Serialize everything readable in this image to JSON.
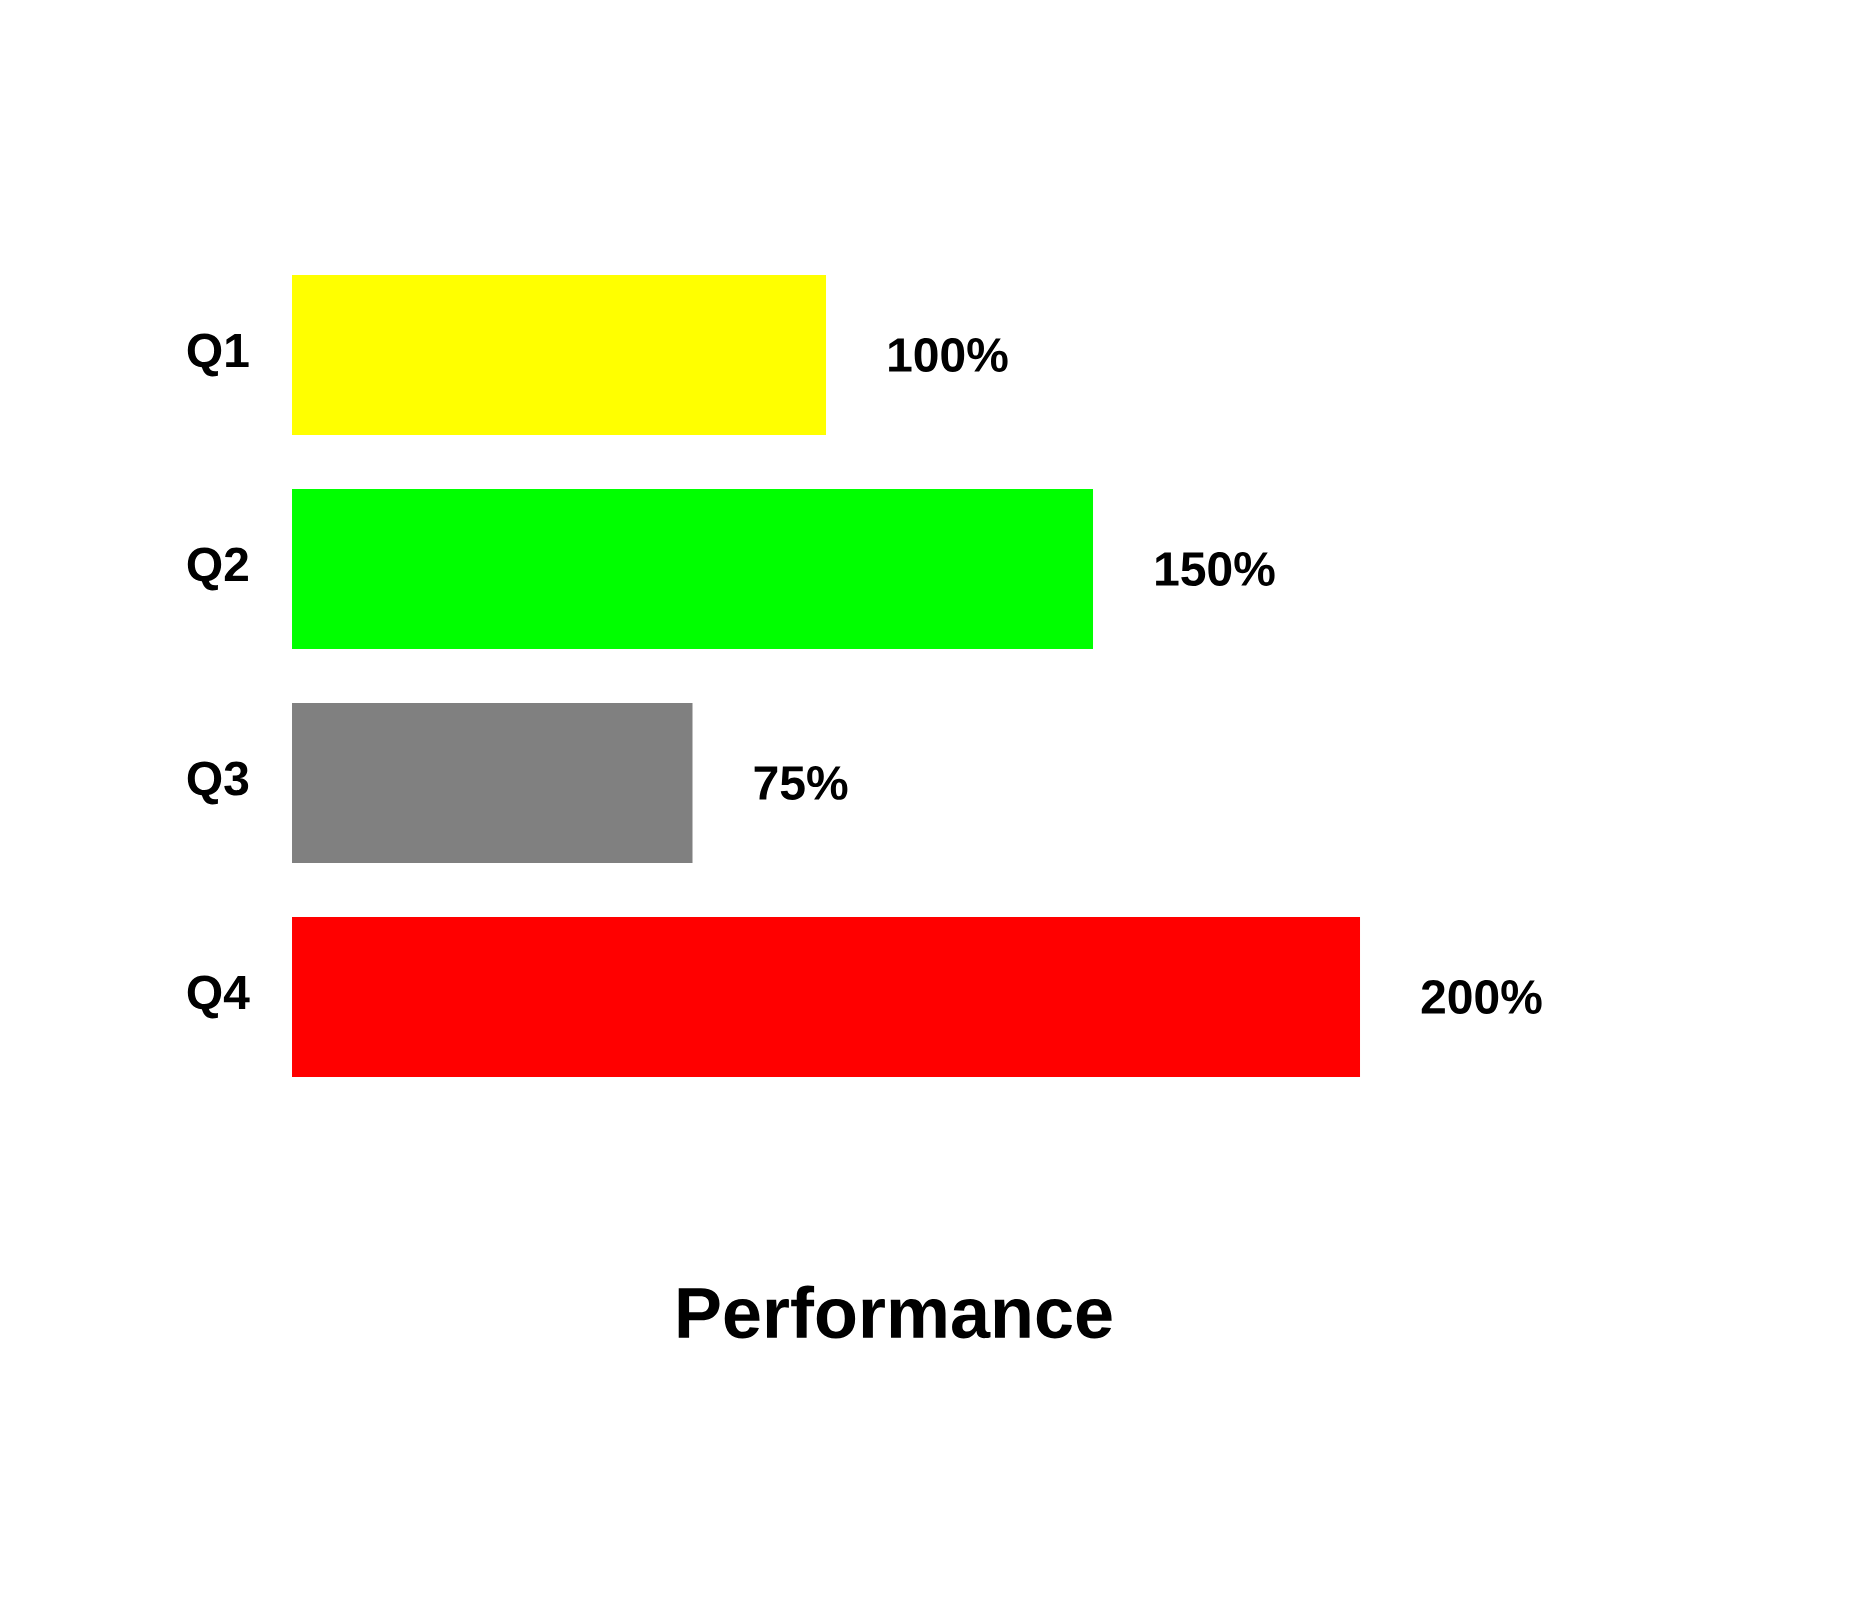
{
  "chart_data": {
    "type": "bar",
    "orientation": "horizontal",
    "title": "Performance",
    "categories": [
      "Q1",
      "Q2",
      "Q3",
      "Q4"
    ],
    "values": [
      100,
      150,
      75,
      200
    ],
    "colors": [
      "#ffff00",
      "#00ff00",
      "#808080",
      "#ff0000"
    ],
    "value_labels": [
      "100%",
      "150%",
      "75%",
      "200%"
    ]
  }
}
